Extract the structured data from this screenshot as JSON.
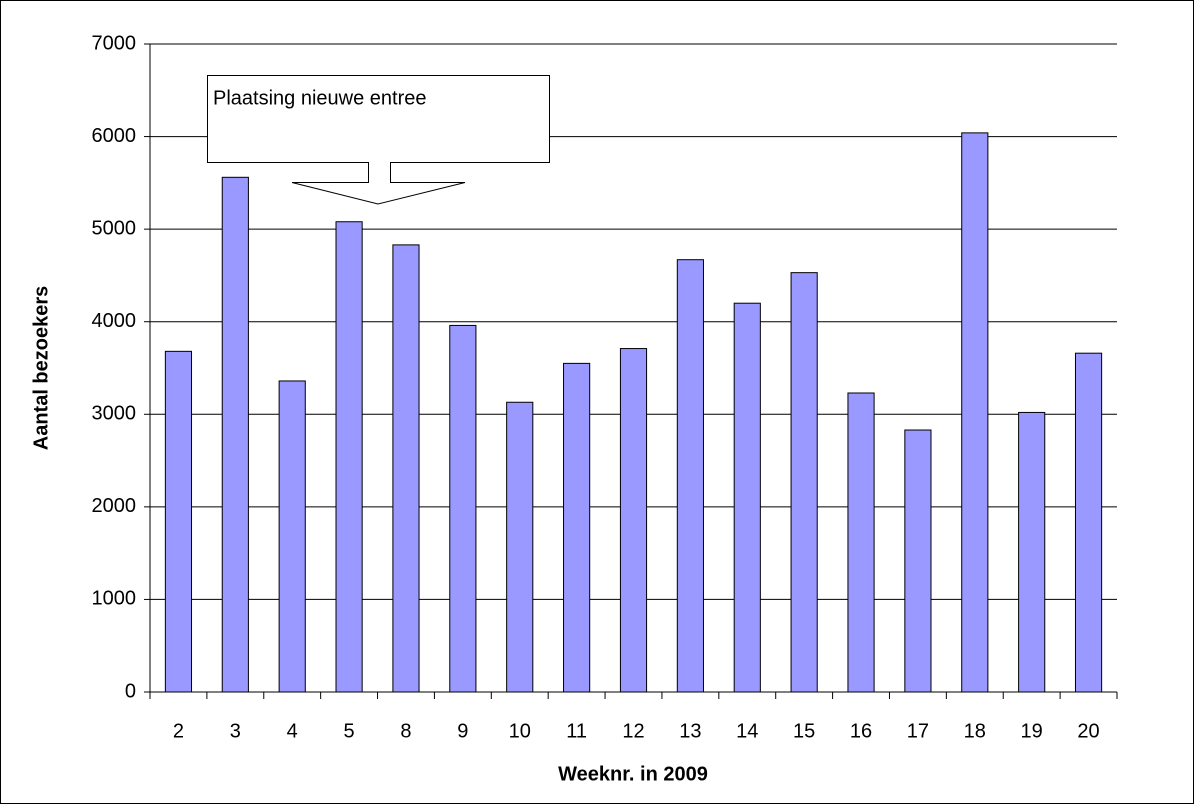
{
  "chart_data": {
    "type": "bar",
    "x_label": "Weeknr. in 2009",
    "y_label": "Aantal bezoekers",
    "annotation": "Plaatsing nieuwe entree",
    "categories": [
      "2",
      "3",
      "4",
      "5",
      "8",
      "9",
      "10",
      "11",
      "12",
      "13",
      "14",
      "15",
      "16",
      "17",
      "18",
      "19",
      "20"
    ],
    "values": [
      3680,
      5560,
      3360,
      5080,
      4830,
      3960,
      3130,
      3550,
      3710,
      4670,
      4200,
      4530,
      3230,
      2830,
      6040,
      3020,
      3660
    ],
    "color": "#9999ff",
    "ylim": [
      0,
      7000
    ],
    "yticks": [
      0,
      1000,
      2000,
      3000,
      4000,
      5000,
      6000,
      7000
    ],
    "grid": true
  }
}
